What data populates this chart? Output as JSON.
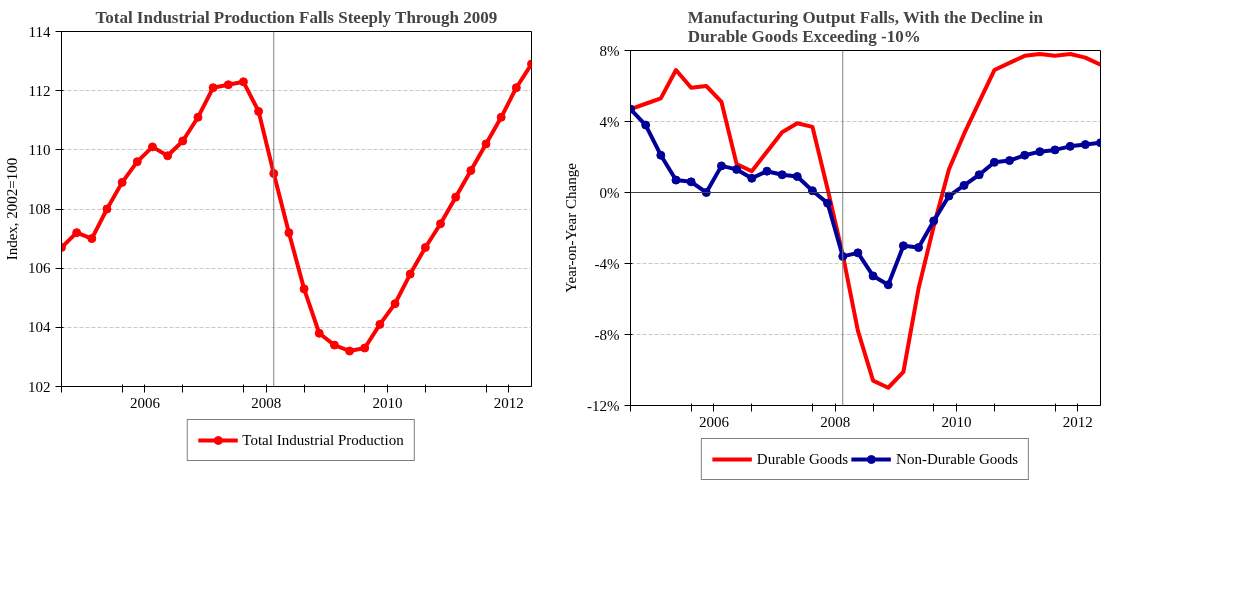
{
  "chart_data": [
    {
      "type": "line",
      "title": "Total Industrial Production Falls Steeply Through 2009",
      "ylabel": "Index, 2002=100",
      "x": [
        2005.0,
        2005.25,
        2005.5,
        2005.75,
        2006.0,
        2006.25,
        2006.5,
        2006.75,
        2007.0,
        2007.25,
        2007.5,
        2007.75,
        2008.0,
        2008.25,
        2008.5,
        2008.75,
        2009.0,
        2009.25,
        2009.5,
        2009.75,
        2010.0,
        2010.25,
        2010.5,
        2010.75,
        2011.0,
        2011.25,
        2011.5,
        2011.75,
        2012.0,
        2012.25,
        2012.5,
        2012.75
      ],
      "series": [
        {
          "name": "Total Industrial Production",
          "color": "#ff0000",
          "marker": "circle",
          "values": [
            106.7,
            107.2,
            107.0,
            108.0,
            108.9,
            109.6,
            110.1,
            109.8,
            110.3,
            111.1,
            112.1,
            112.2,
            112.3,
            111.3,
            109.2,
            107.2,
            105.3,
            103.8,
            103.4,
            103.2,
            103.3,
            104.1,
            104.8,
            105.8,
            106.7,
            107.5,
            108.4,
            109.3,
            110.2,
            111.1,
            112.1,
            112.9
          ]
        }
      ],
      "xlim": [
        2005.0,
        2012.75
      ],
      "xticks": [
        {
          "value": 2005,
          "label": null
        },
        {
          "value": 2006,
          "label": null
        },
        {
          "value": 2007,
          "label": null
        },
        {
          "value": 2008,
          "label": null
        },
        {
          "value": 2009,
          "label": null
        },
        {
          "value": 2010,
          "label": null
        },
        {
          "value": 2011,
          "label": null
        },
        {
          "value": 2012,
          "label": null
        },
        {
          "value": 2006.375,
          "label": "2006"
        },
        {
          "value": 2008.375,
          "label": "2008"
        },
        {
          "value": 2010.375,
          "label": "2010"
        },
        {
          "value": 2012.375,
          "label": "2012"
        }
      ],
      "ylim": [
        102,
        114
      ],
      "yticks": [
        102,
        104,
        106,
        108,
        110,
        112,
        114
      ],
      "ref_lines": [
        {
          "axis": "x",
          "value": 2008.5,
          "color": "#808080"
        }
      ],
      "grid": "y",
      "legend": "bottom",
      "line_style": "solid"
    },
    {
      "type": "line",
      "title": "Manufacturing Output Falls, With the Decline in Durable Goods Exceeding -10%",
      "ylabel": "Year-on-Year Change",
      "x": [
        2005.0,
        2005.25,
        2005.5,
        2005.75,
        2006.0,
        2006.25,
        2006.5,
        2006.75,
        2007.0,
        2007.25,
        2007.5,
        2007.75,
        2008.0,
        2008.25,
        2008.5,
        2008.75,
        2009.0,
        2009.25,
        2009.5,
        2009.75,
        2010.0,
        2010.25,
        2010.5,
        2010.75,
        2011.0,
        2011.25,
        2011.5,
        2011.75,
        2012.0,
        2012.25,
        2012.5,
        2012.75
      ],
      "series": [
        {
          "name": "Durable Goods",
          "color": "#ff0000",
          "marker": "none",
          "values": [
            4.7,
            5.0,
            5.3,
            6.9,
            5.9,
            6.0,
            5.1,
            1.6,
            1.2,
            2.3,
            3.4,
            3.9,
            3.7,
            0.2,
            -3.5,
            -7.8,
            -10.6,
            -11.0,
            -10.1,
            -5.4,
            -1.9,
            1.3,
            3.3,
            5.1,
            6.9,
            7.3,
            7.7,
            7.8,
            7.7,
            7.8,
            7.6,
            7.2
          ]
        },
        {
          "name": "Non-Durable Goods",
          "color": "#000099",
          "marker": "circle",
          "values": [
            4.7,
            3.8,
            2.1,
            0.7,
            0.6,
            0.0,
            1.5,
            1.3,
            0.8,
            1.2,
            1.0,
            0.9,
            0.1,
            -0.6,
            -3.6,
            -3.4,
            -4.7,
            -5.2,
            -3.0,
            -3.1,
            -1.6,
            -0.2,
            0.4,
            1.0,
            1.7,
            1.8,
            2.1,
            2.3,
            2.4,
            2.6,
            2.7,
            2.8
          ]
        }
      ],
      "xlim": [
        2005.0,
        2012.75
      ],
      "xticks": [
        {
          "value": 2005,
          "label": null
        },
        {
          "value": 2006,
          "label": null
        },
        {
          "value": 2007,
          "label": null
        },
        {
          "value": 2008,
          "label": null
        },
        {
          "value": 2009,
          "label": null
        },
        {
          "value": 2010,
          "label": null
        },
        {
          "value": 2011,
          "label": null
        },
        {
          "value": 2012,
          "label": null
        },
        {
          "value": 2006.375,
          "label": "2006"
        },
        {
          "value": 2008.375,
          "label": "2008"
        },
        {
          "value": 2010.375,
          "label": "2010"
        },
        {
          "value": 2012.375,
          "label": "2012"
        }
      ],
      "ylim": [
        -12,
        8
      ],
      "yticks": [
        {
          "value": -12,
          "label": "-12%"
        },
        {
          "value": -8,
          "label": "-8%"
        },
        {
          "value": -4,
          "label": "-4%"
        },
        {
          "value": 0,
          "label": "0%"
        },
        {
          "value": 4,
          "label": "4%"
        },
        {
          "value": 8,
          "label": "8%"
        }
      ],
      "ref_lines": [
        {
          "axis": "x",
          "value": 2008.5,
          "color": "#808080"
        },
        {
          "axis": "y",
          "value": 0,
          "color": "#404040"
        }
      ],
      "grid": "y",
      "legend": "bottom",
      "line_style": "solid"
    }
  ]
}
